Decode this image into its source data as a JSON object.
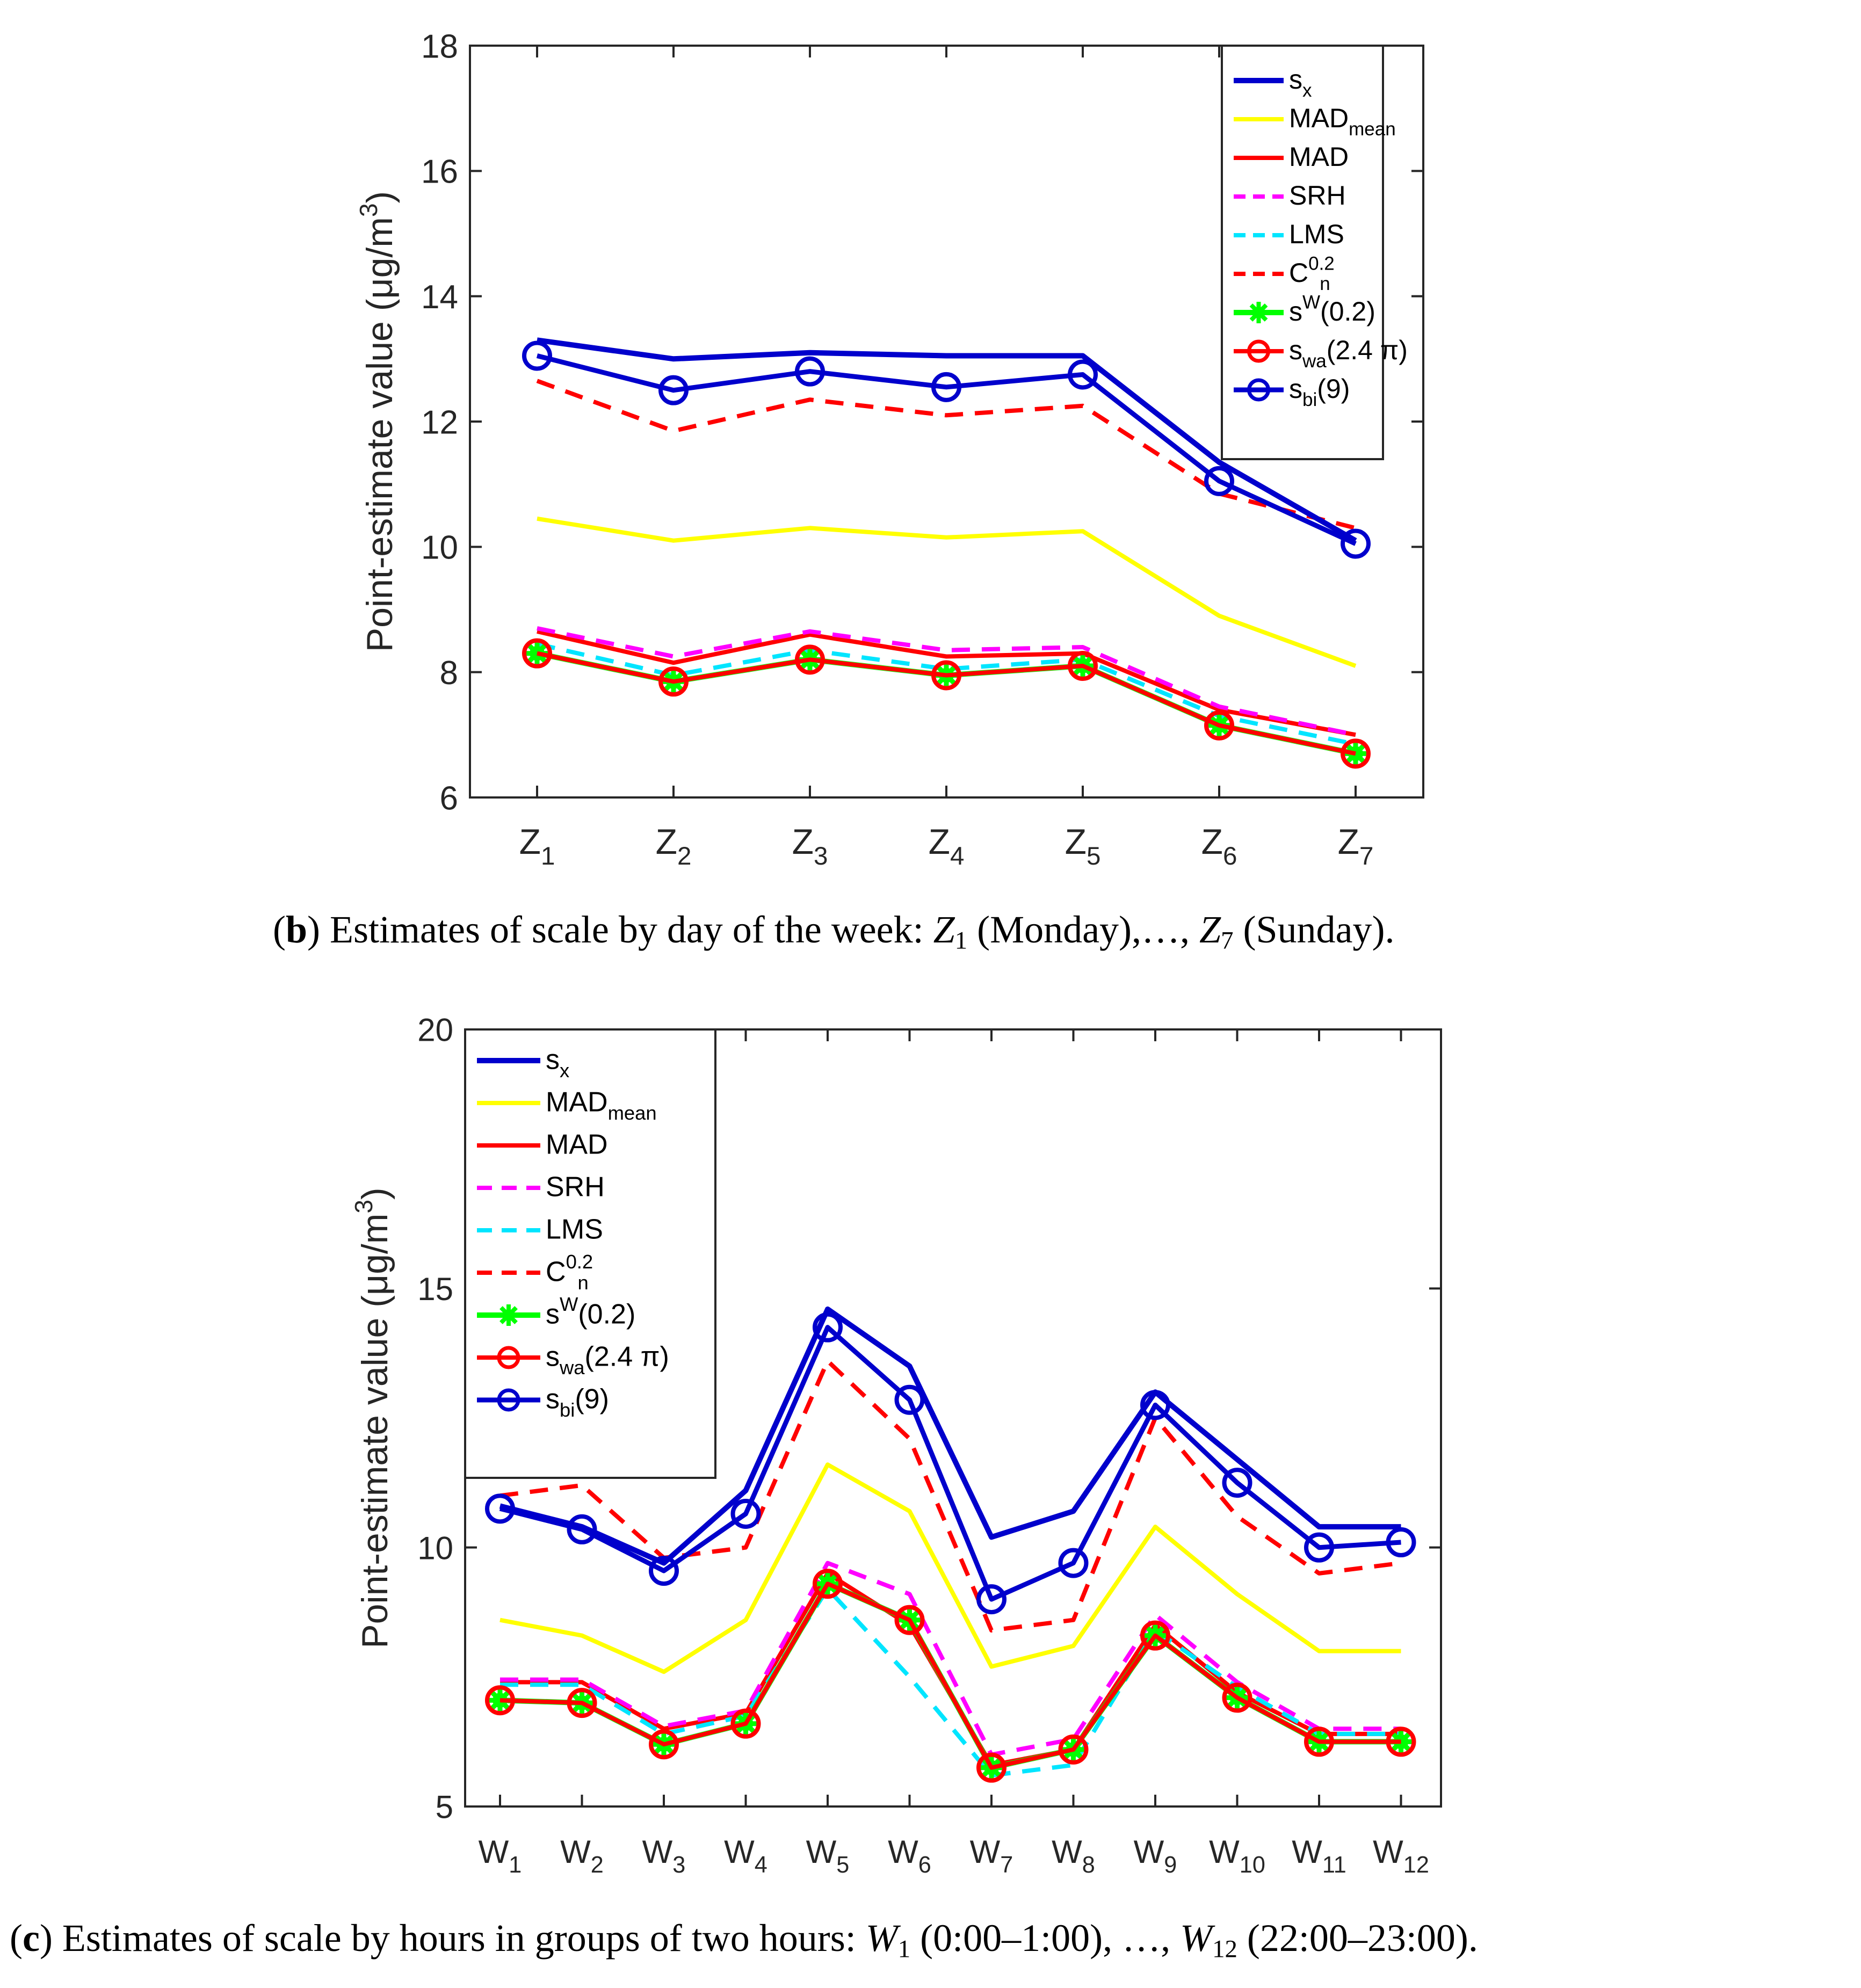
{
  "chart_data": [
    {
      "id": "b",
      "type": "line",
      "ylabel": "Point-estimate value (μg/m³)",
      "ylim": [
        6,
        18
      ],
      "yticks": [
        6,
        8,
        10,
        12,
        14,
        16,
        18
      ],
      "categories": [
        "Z1",
        "Z2",
        "Z3",
        "Z4",
        "Z5",
        "Z6",
        "Z7"
      ],
      "legend_position": "top-right",
      "series": [
        {
          "name": "sx",
          "values": [
            13.3,
            13.0,
            13.1,
            13.05,
            13.05,
            11.35,
            10.1
          ]
        },
        {
          "name": "MADmean",
          "values": [
            10.45,
            10.1,
            10.3,
            10.15,
            10.25,
            8.9,
            8.1
          ]
        },
        {
          "name": "MAD",
          "values": [
            8.65,
            8.15,
            8.6,
            8.25,
            8.3,
            7.4,
            7.0
          ]
        },
        {
          "name": "SRH",
          "values": [
            8.7,
            8.25,
            8.65,
            8.35,
            8.4,
            7.45,
            7.0
          ]
        },
        {
          "name": "LMS",
          "values": [
            8.45,
            7.95,
            8.35,
            8.05,
            8.2,
            7.3,
            6.85
          ]
        },
        {
          "name": "Cn0.2",
          "values": [
            12.65,
            11.85,
            12.35,
            12.1,
            12.25,
            10.85,
            10.3
          ]
        },
        {
          "name": "sW(0.2)",
          "values": [
            8.3,
            7.85,
            8.2,
            7.95,
            8.1,
            7.15,
            6.7
          ]
        },
        {
          "name": "swa(2.4π)",
          "values": [
            8.3,
            7.85,
            8.2,
            7.95,
            8.1,
            7.15,
            6.7
          ]
        },
        {
          "name": "sbi(9)",
          "values": [
            13.05,
            12.5,
            12.8,
            12.55,
            12.75,
            11.05,
            10.05
          ]
        }
      ]
    },
    {
      "id": "c",
      "type": "line",
      "ylabel": "Point-estimate value (μg/m³)",
      "ylim": [
        5,
        20
      ],
      "yticks": [
        5,
        10,
        15,
        20
      ],
      "categories": [
        "W1",
        "W2",
        "W3",
        "W4",
        "W5",
        "W6",
        "W7",
        "W8",
        "W9",
        "W10",
        "W11",
        "W12"
      ],
      "legend_position": "top-left",
      "series": [
        {
          "name": "sx",
          "values": [
            10.8,
            10.4,
            9.7,
            11.1,
            14.6,
            13.5,
            10.2,
            10.7,
            13.0,
            11.7,
            10.4,
            10.4
          ]
        },
        {
          "name": "MADmean",
          "values": [
            8.6,
            8.3,
            7.6,
            8.6,
            11.6,
            10.7,
            7.7,
            8.1,
            10.4,
            9.1,
            8.0,
            8.0
          ]
        },
        {
          "name": "MAD",
          "values": [
            7.4,
            7.4,
            6.5,
            6.8,
            9.5,
            8.5,
            5.8,
            6.1,
            8.5,
            7.2,
            6.4,
            6.4
          ]
        },
        {
          "name": "SRH",
          "values": [
            7.45,
            7.45,
            6.55,
            6.85,
            9.7,
            9.1,
            6.0,
            6.3,
            8.7,
            7.4,
            6.5,
            6.5
          ]
        },
        {
          "name": "LMS",
          "values": [
            7.35,
            7.35,
            6.4,
            6.75,
            9.2,
            7.5,
            5.6,
            5.8,
            8.4,
            7.3,
            6.4,
            6.4
          ]
        },
        {
          "name": "Cn0.2",
          "values": [
            11.0,
            11.2,
            9.8,
            10.0,
            13.6,
            12.1,
            8.4,
            8.6,
            12.5,
            10.6,
            9.5,
            9.7
          ]
        },
        {
          "name": "sW(0.2)",
          "values": [
            7.05,
            7.0,
            6.2,
            6.6,
            9.3,
            8.6,
            5.75,
            6.1,
            8.3,
            7.1,
            6.25,
            6.25
          ]
        },
        {
          "name": "swa(2.4π)",
          "values": [
            7.05,
            7.0,
            6.2,
            6.6,
            9.3,
            8.6,
            5.75,
            6.1,
            8.3,
            7.1,
            6.25,
            6.25
          ]
        },
        {
          "name": "sbi(9)",
          "values": [
            10.75,
            10.35,
            9.55,
            10.65,
            14.25,
            12.85,
            9.0,
            9.7,
            12.75,
            11.25,
            10.0,
            10.1
          ]
        }
      ]
    }
  ],
  "legend": [
    {
      "base": "s",
      "sub": "x",
      "sup": "",
      "rest": ""
    },
    {
      "base": "MAD",
      "sub": "mean",
      "sup": "",
      "rest": ""
    },
    {
      "base": "MAD",
      "sub": "",
      "sup": "",
      "rest": ""
    },
    {
      "base": "SRH",
      "sub": "",
      "sup": "",
      "rest": ""
    },
    {
      "base": "LMS",
      "sub": "",
      "sup": "",
      "rest": ""
    },
    {
      "base": "C",
      "sub": "n",
      "sup": "0.2",
      "rest": ""
    },
    {
      "base": "s",
      "sub": "",
      "sup": "W",
      "rest": "(0.2)"
    },
    {
      "base": "s",
      "sub": "wa",
      "sup": "",
      "rest": "(2.4 π)"
    },
    {
      "base": "s",
      "sub": "bi",
      "sup": "",
      "rest": "(9)"
    }
  ],
  "styles": [
    {
      "color": "#0000cc",
      "dash": "",
      "marker": "none",
      "width": 10
    },
    {
      "color": "#ffff00",
      "dash": "",
      "marker": "none",
      "width": 8
    },
    {
      "color": "#ff0000",
      "dash": "",
      "marker": "none",
      "width": 8
    },
    {
      "color": "#ff00ff",
      "dash": "34 22",
      "marker": "none",
      "width": 8
    },
    {
      "color": "#00e5ff",
      "dash": "34 22",
      "marker": "none",
      "width": 8
    },
    {
      "color": "#ff0000",
      "dash": "34 22",
      "marker": "none",
      "width": 8
    },
    {
      "color": "#00ff00",
      "dash": "",
      "marker": "star",
      "width": 10
    },
    {
      "color": "#ff0000",
      "dash": "",
      "marker": "circle",
      "width": 8
    },
    {
      "color": "#0000cc",
      "dash": "",
      "marker": "circle",
      "width": 9
    }
  ],
  "captions": {
    "b": {
      "label": "b",
      "text1": ") Estimates of scale by day of the week: ",
      "sym1": "Z",
      "sub1": "1",
      "text2": " (Monday),…, ",
      "sym2": "Z",
      "sub2": "7",
      "text3": " (Sunday)."
    },
    "c": {
      "label": "c",
      "text1": ") Estimates of scale by hours in groups of two hours: ",
      "sym1": "W",
      "sub1": "1",
      "text2": " (0:00–1:00), …, ",
      "sym2": "W",
      "sub2": "12",
      "text3": " (22:00–23:00)."
    }
  }
}
